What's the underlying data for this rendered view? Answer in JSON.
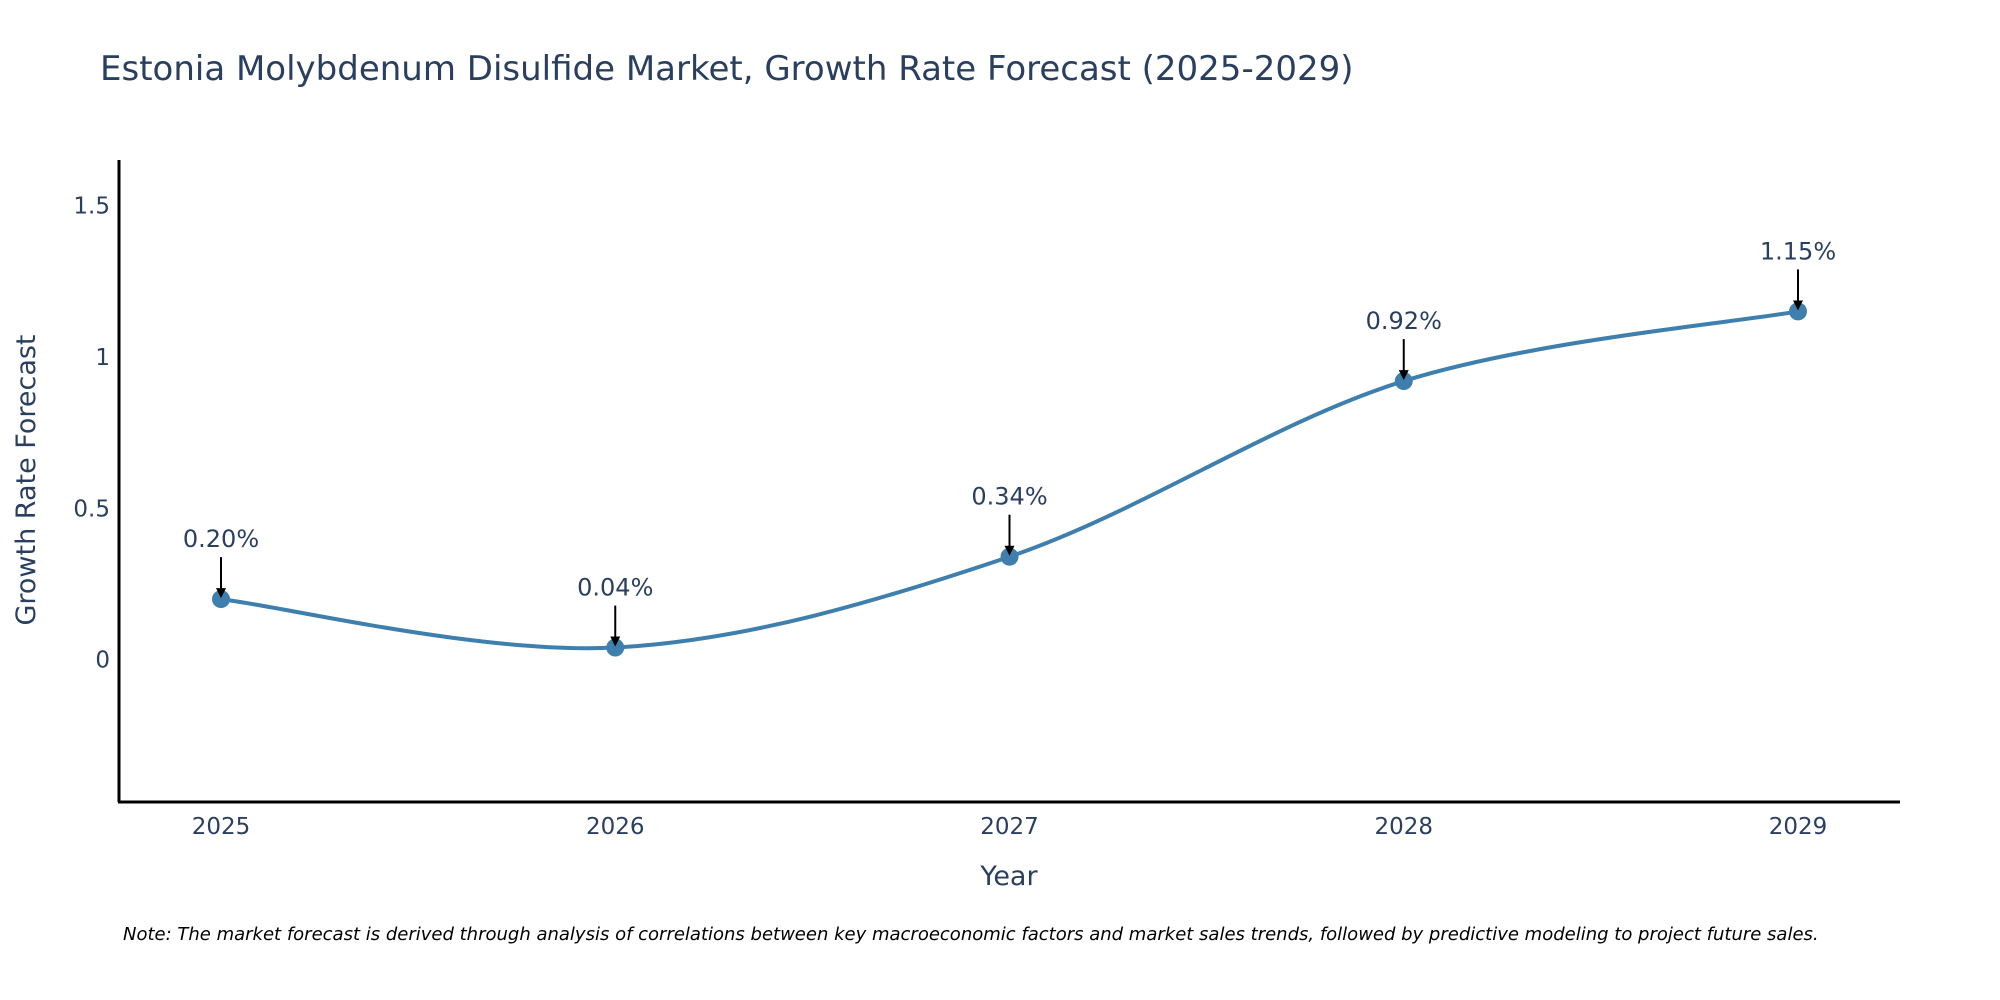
{
  "colors": {
    "line": "#3f7fad",
    "marker": "#3f7fad",
    "text": "#2a3f5f",
    "axis": "#000000",
    "arrow": "#000000"
  },
  "chart_data": {
    "type": "line",
    "title": "Estonia Molybdenum Disulfide Market, Growth Rate Forecast (2025-2029)",
    "xlabel": "Year",
    "ylabel": "Growth Rate Forecast",
    "categories": [
      "2025",
      "2026",
      "2027",
      "2028",
      "2029"
    ],
    "series": [
      {
        "name": "Growth Rate Forecast",
        "values": [
          0.2,
          0.04,
          0.34,
          0.92,
          1.15
        ],
        "labels": [
          "0.20%",
          "0.04%",
          "0.34%",
          "0.92%",
          "1.15%"
        ]
      }
    ],
    "y_ticks": [
      0,
      0.5,
      1,
      1.5
    ],
    "y_tick_labels": [
      "0",
      "0.5",
      "1",
      "1.5"
    ],
    "ylim": [
      -0.47,
      1.65
    ],
    "grid": false,
    "line_shape": "spline",
    "note": "Note: The market forecast is derived through analysis of correlations between key macroeconomic factors and market sales trends, followed by predictive modeling to project future sales."
  }
}
